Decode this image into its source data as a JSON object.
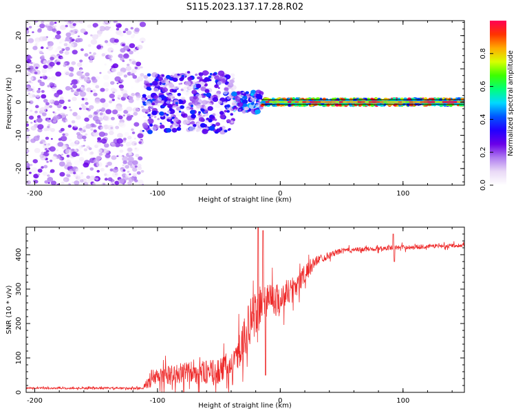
{
  "figure_title": "S115.2023.137.17.28.R02",
  "chart_data": [
    {
      "type": "heatmap",
      "title": "",
      "xlabel": "Height of straight line (km)",
      "ylabel": "Frequency (Hz)",
      "xlim": [
        -207,
        150
      ],
      "ylim": [
        -25,
        24.5
      ],
      "xticks": [
        -200,
        -100,
        0,
        100
      ],
      "yticks": [
        -20,
        -10,
        0,
        10,
        20
      ],
      "grid": false,
      "colorbar": {
        "label": "Normalized spectral amplitude",
        "range": [
          0,
          1
        ],
        "ticks": [
          0.0,
          0.2,
          0.4,
          0.6,
          0.8
        ],
        "colormap": [
          "#ffffff",
          "#e9d9f6",
          "#b07cf0",
          "#6a00e8",
          "#2200ff",
          "#0055ff",
          "#00d9ff",
          "#00ff7a",
          "#3cff00",
          "#d8ff00",
          "#ffaa00",
          "#ff3300",
          "#ff0055"
        ]
      },
      "regions": [
        {
          "x": [
            -207,
            -112
          ],
          "freq_spread": 25,
          "amplitude_max": 0.25,
          "description_level": "noise"
        },
        {
          "x": [
            -112,
            -38
          ],
          "freq_spread": 9,
          "amplitude_max": 0.4
        },
        {
          "x": [
            -38,
            -15
          ],
          "freq_spread": 3,
          "amplitude_max": 0.5
        },
        {
          "x": [
            -15,
            150
          ],
          "freq_spread": 1,
          "amplitude_max": 1.0
        }
      ],
      "signal_tone_hz": 0
    },
    {
      "type": "line",
      "title": "",
      "xlabel": "Height of straight line (km)",
      "ylabel": "SNR (10 * v/v)",
      "xlim": [
        -207,
        150
      ],
      "ylim": [
        0,
        480
      ],
      "xticks": [
        -200,
        -100,
        0,
        100
      ],
      "yticks": [
        0,
        100,
        200,
        300,
        400
      ],
      "grid": false,
      "series_color": "#ee2a2a",
      "envelope": [
        {
          "x": -207,
          "baseline": 12,
          "noise": 6
        },
        {
          "x": -112,
          "baseline": 12,
          "noise": 6
        },
        {
          "x": -105,
          "baseline": 40,
          "noise": 60
        },
        {
          "x": -80,
          "baseline": 55,
          "noise": 70
        },
        {
          "x": -50,
          "baseline": 60,
          "noise": 80
        },
        {
          "x": -38,
          "baseline": 80,
          "noise": 90
        },
        {
          "x": -25,
          "baseline": 200,
          "noise": 150
        },
        {
          "x": -10,
          "baseline": 280,
          "noise": 120
        },
        {
          "x": 0,
          "baseline": 270,
          "noise": 90
        },
        {
          "x": 15,
          "baseline": 320,
          "noise": 80
        },
        {
          "x": 30,
          "baseline": 385,
          "noise": 30
        },
        {
          "x": 50,
          "baseline": 412,
          "noise": 15
        },
        {
          "x": 90,
          "baseline": 420,
          "noise": 15
        },
        {
          "x": 150,
          "baseline": 428,
          "noise": 12
        }
      ],
      "spikes": [
        {
          "x": -18,
          "y": 480
        },
        {
          "x": -14,
          "y": 470
        },
        {
          "x": -12,
          "y": 50
        },
        {
          "x": 92,
          "y": 460
        },
        {
          "x": 93,
          "y": 380
        }
      ]
    }
  ]
}
